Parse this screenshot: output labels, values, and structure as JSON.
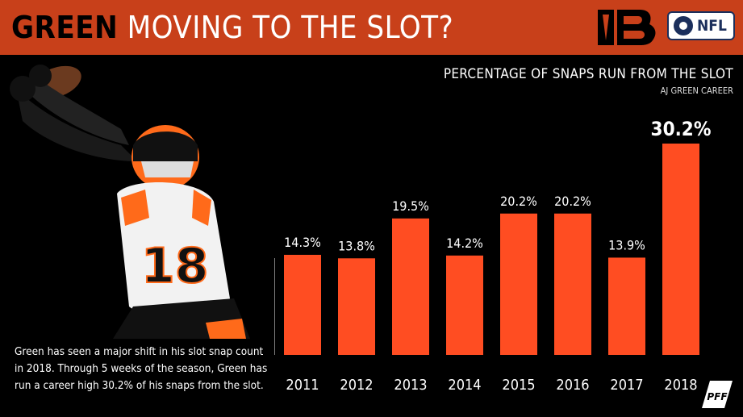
{
  "header": {
    "title_highlight": "GREEN",
    "title_rest": " MOVING TO THE SLOT?",
    "logos": [
      "bengals-logo",
      "cbs-nfl-logo"
    ],
    "cbs_nfl_text": "NFL"
  },
  "caption": "Green has seen a major shift in his slot snap count in 2018. Through 5 weeks of the season, Green has run a career high 30.2% of his snaps from the slot.",
  "brand": {
    "pff": "PFF"
  },
  "colors": {
    "header": "#c8401a",
    "bar": "#ff4d22",
    "background": "#000000",
    "text": "#ffffff"
  },
  "chart_data": {
    "type": "bar",
    "title": "PERCENTAGE OF SNAPS RUN FROM THE SLOT",
    "subtitle": "AJ GREEN CAREER",
    "categories": [
      "2011",
      "2012",
      "2013",
      "2014",
      "2015",
      "2016",
      "2017",
      "2018"
    ],
    "values": [
      14.3,
      13.8,
      19.5,
      14.2,
      20.2,
      20.2,
      13.9,
      30.2
    ],
    "data_labels": [
      "14.3%",
      "13.8%",
      "19.5%",
      "14.2%",
      "20.2%",
      "20.2%",
      "13.9%",
      "30.2%"
    ],
    "highlight_category": "2018",
    "xlabel": "",
    "ylabel": "",
    "ylim": [
      0,
      30.2
    ],
    "grid": false,
    "legend": "none"
  }
}
